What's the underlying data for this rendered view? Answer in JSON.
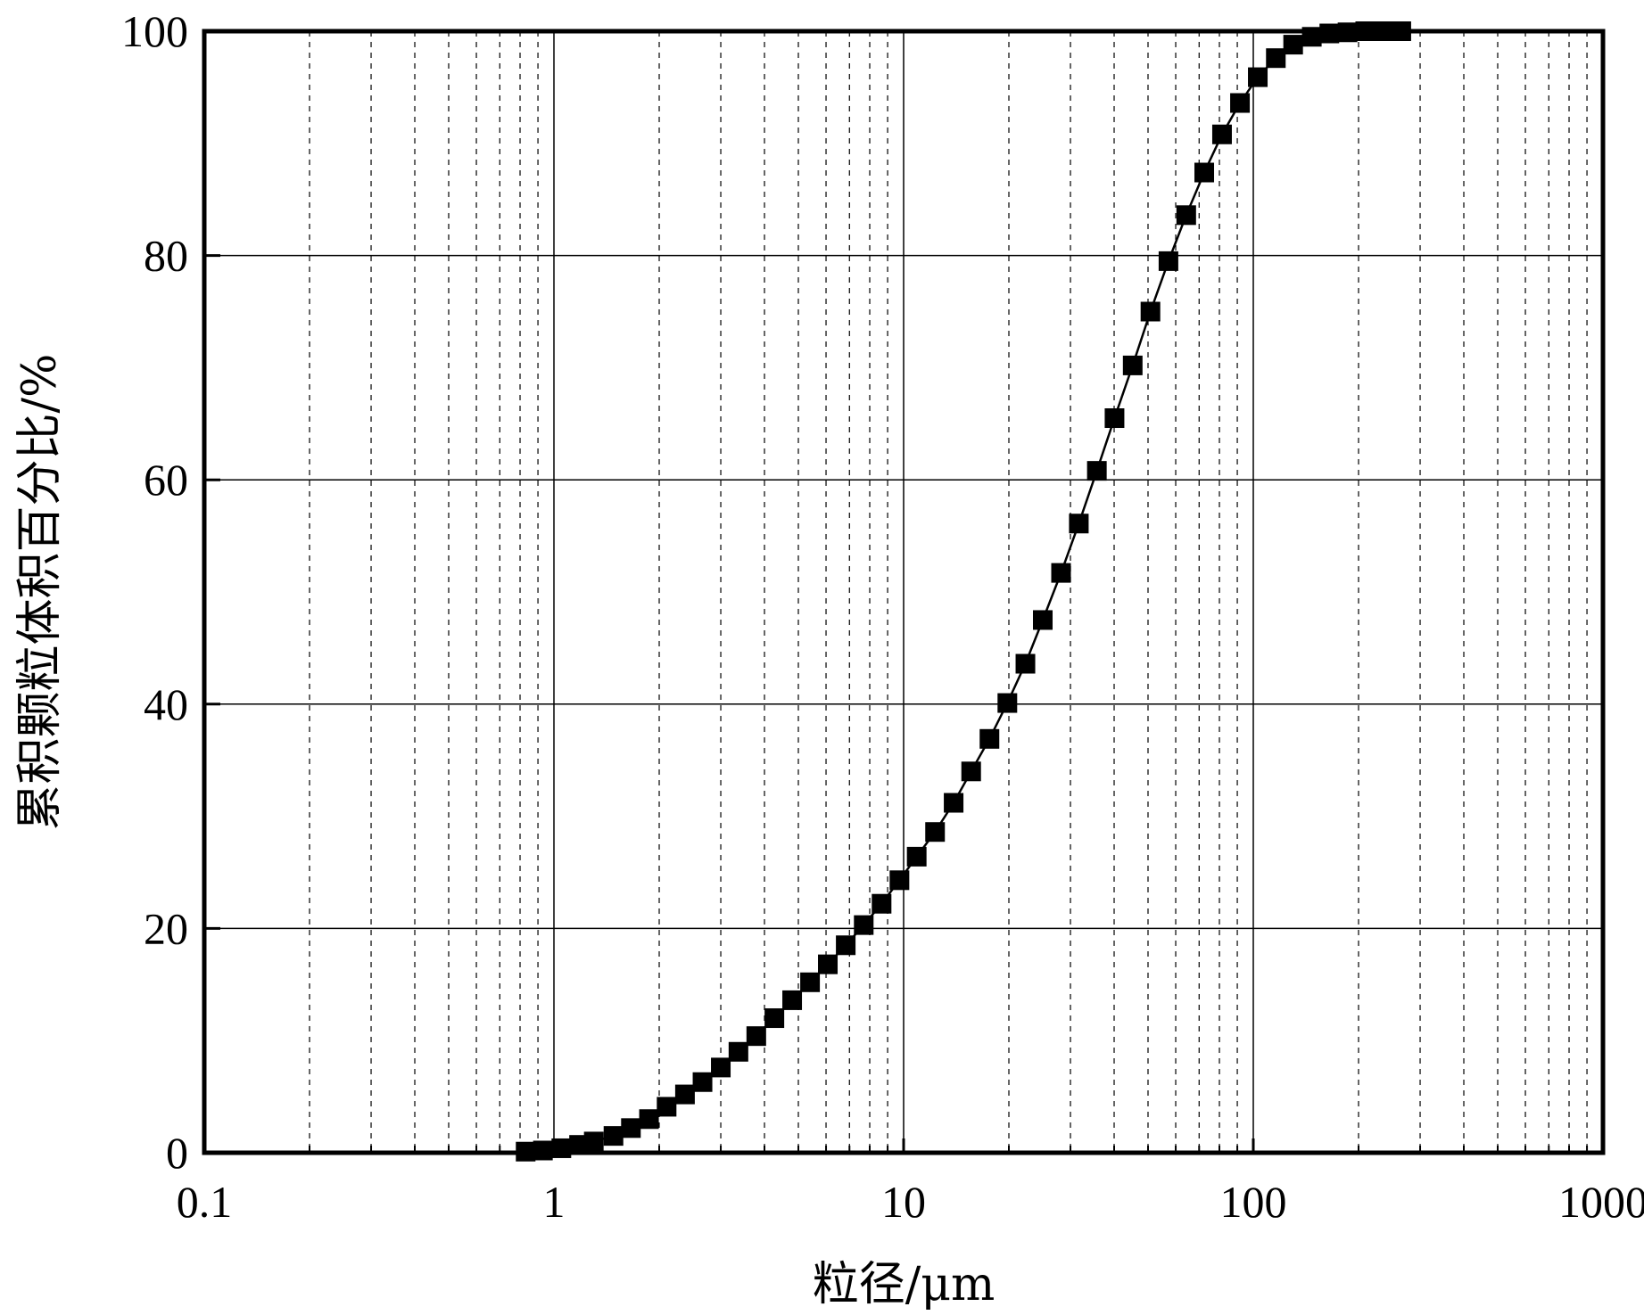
{
  "chart_data": {
    "type": "scatter",
    "xlabel": "粒径/μm",
    "ylabel": "累积颗粒体积百分比/%",
    "x_scale": "log",
    "xlim": [
      0.1,
      1000
    ],
    "ylim": [
      0,
      100
    ],
    "x_ticks": [
      "0.1",
      "1",
      "10",
      "100",
      "1000"
    ],
    "y_ticks": [
      "0",
      "20",
      "40",
      "60",
      "80",
      "100"
    ],
    "grid": true,
    "marker": "square",
    "line": true,
    "colors": {
      "series": "#000000",
      "grid": "#000000"
    },
    "series": [
      {
        "x": [
          0.83,
          0.93,
          1.05,
          1.18,
          1.3,
          1.48,
          1.66,
          1.87,
          2.1,
          2.37,
          2.66,
          3.0,
          3.37,
          3.79,
          4.27,
          4.8,
          5.4,
          6.07,
          6.83,
          7.69,
          8.65,
          9.73,
          10.9,
          12.3,
          13.9,
          15.6,
          17.6,
          19.8,
          22.3,
          25.0,
          28.2,
          31.7,
          35.7,
          40.1,
          45.2,
          50.8,
          57.2,
          64.3,
          72.4,
          81.4,
          91.6,
          103,
          116,
          130,
          147,
          165,
          186,
          209,
          235,
          265
        ],
        "y": [
          0.1,
          0.2,
          0.4,
          0.7,
          1.0,
          1.5,
          2.2,
          3.0,
          4.1,
          5.2,
          6.3,
          7.6,
          9.0,
          10.4,
          12.0,
          13.6,
          15.2,
          16.8,
          18.5,
          20.3,
          22.2,
          24.3,
          26.4,
          28.6,
          31.2,
          34.0,
          36.9,
          40.1,
          43.6,
          47.5,
          51.7,
          56.1,
          60.8,
          65.5,
          70.2,
          75.0,
          79.5,
          83.6,
          87.4,
          90.8,
          93.6,
          95.9,
          97.6,
          98.8,
          99.5,
          99.8,
          99.9,
          100.0,
          100.0,
          100.0
        ]
      }
    ]
  }
}
